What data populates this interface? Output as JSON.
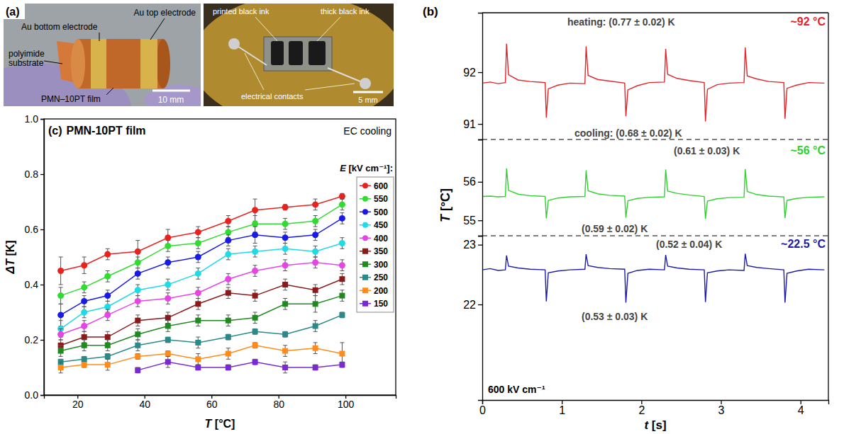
{
  "panel_a": {
    "panel_label": "(a)",
    "left_photo": {
      "labels": [
        "Au bottom electrode",
        "Au top electrode",
        "polyimide substrate",
        "PMN–10PT film"
      ],
      "scale_bar": "10 mm"
    },
    "right_photo": {
      "labels": [
        "printed black ink",
        "thick black ink",
        "electrical contacts"
      ],
      "scale_bar": "5 mm"
    }
  },
  "chart_data": [
    {
      "type": "line",
      "panel_label": "(b)",
      "xlabel": "t [s]",
      "ylabel": "T [°C]",
      "x": [
        0,
        0.1,
        0.2,
        0.29,
        0.305,
        0.33,
        0.45,
        0.6,
        0.79,
        0.805,
        0.83,
        0.95,
        1.1,
        1.29,
        1.305,
        1.33,
        1.45,
        1.6,
        1.79,
        1.805,
        1.83,
        1.95,
        2.1,
        2.29,
        2.305,
        2.33,
        2.45,
        2.6,
        2.79,
        2.805,
        2.83,
        2.95,
        3.1,
        3.29,
        3.305,
        3.33,
        3.45,
        3.6,
        3.79,
        3.805,
        3.83,
        3.95,
        4.1,
        4.3
      ],
      "xlim": [
        0,
        4.35
      ],
      "xticks": [
        0,
        1,
        2,
        3,
        4
      ],
      "field_label": "600 kV cm⁻¹",
      "panels": [
        {
          "ylim": [
            90.7,
            93.15
          ],
          "yticks": [
            91,
            92
          ],
          "temperature_label": "~92 °C",
          "annotations": [
            "heating: (0.77 ± 0.02) K",
            "cooling: (0.68 ± 0.02) K"
          ],
          "series": [
            {
              "color": "#e3242b",
              "values": [
                91.79,
                91.81,
                91.78,
                91.8,
                92.55,
                91.95,
                91.85,
                91.82,
                91.8,
                91.12,
                91.68,
                91.75,
                91.79,
                91.78,
                92.5,
                91.94,
                91.86,
                91.83,
                91.79,
                91.15,
                91.66,
                91.74,
                91.8,
                91.81,
                92.45,
                91.96,
                91.88,
                91.84,
                91.8,
                91.05,
                91.67,
                91.76,
                91.79,
                91.8,
                92.48,
                91.93,
                91.87,
                91.82,
                91.8,
                91.1,
                91.69,
                91.75,
                91.8,
                91.79
              ]
            }
          ]
        },
        {
          "ylim": [
            54.6,
            57.1
          ],
          "yticks": [
            55,
            56
          ],
          "temperature_label": "~56 °C",
          "annotations": [
            "(0.61 ± 0.03) K",
            "(0.59 ± 0.02) K"
          ],
          "series": [
            {
              "color": "#2fd12f",
              "values": [
                55.62,
                55.63,
                55.61,
                55.62,
                56.35,
                55.78,
                55.68,
                55.64,
                55.62,
                55.05,
                55.52,
                55.58,
                55.61,
                55.62,
                56.3,
                55.77,
                55.69,
                55.65,
                55.63,
                55.07,
                55.51,
                55.57,
                55.6,
                55.61,
                56.32,
                55.76,
                55.7,
                55.66,
                55.62,
                55.04,
                55.5,
                55.56,
                55.59,
                55.6,
                56.33,
                55.75,
                55.67,
                55.63,
                55.61,
                55.06,
                55.52,
                55.57,
                55.6,
                55.61
              ]
            }
          ]
        },
        {
          "ylim": [
            20.4,
            23.15
          ],
          "yticks": [
            22,
            23
          ],
          "temperature_label": "~22.5 °C",
          "annotations": [
            "(0.52 ± 0.04) K",
            "(0.53 ± 0.03) K"
          ],
          "series": [
            {
              "color": "#1c1ca8",
              "values": [
                22.58,
                22.6,
                22.57,
                22.58,
                22.82,
                22.64,
                22.61,
                22.59,
                22.58,
                22.05,
                22.53,
                22.56,
                22.58,
                22.59,
                22.84,
                22.65,
                22.62,
                22.6,
                22.59,
                22.03,
                22.52,
                22.57,
                22.59,
                22.58,
                22.83,
                22.64,
                22.61,
                22.59,
                22.58,
                22.04,
                22.53,
                22.56,
                22.58,
                22.57,
                22.85,
                22.65,
                22.62,
                22.6,
                22.58,
                22.03,
                22.52,
                22.56,
                22.59,
                22.58
              ]
            }
          ]
        }
      ]
    },
    {
      "type": "line",
      "panel_label": "(c)",
      "title": "PMN-10PT film",
      "annotations": [
        "EC cooling"
      ],
      "xlabel": "T [°C]",
      "ylabel": "ΔT [K]",
      "legend_title": "E [kV cm⁻¹]:",
      "legend": "upper right",
      "x": [
        15,
        22,
        29,
        38,
        47,
        56,
        65,
        73,
        82,
        91,
        99
      ],
      "xlim": [
        10,
        115
      ],
      "xticks": [
        20,
        40,
        60,
        80,
        100
      ],
      "ylim": [
        0,
        1
      ],
      "yticks": [
        {
          "value": 0,
          "label": "0.0"
        },
        0.2,
        0.4,
        0.6,
        0.8,
        {
          "value": 1,
          "label": "1.0"
        }
      ],
      "series": [
        {
          "name": "600",
          "color": "#e8231f",
          "marker": "circle",
          "values": [
            0.45,
            0.47,
            0.51,
            0.52,
            0.57,
            0.59,
            0.63,
            0.67,
            0.68,
            0.69,
            0.72
          ],
          "errors": [
            0.05,
            0.03,
            0.02,
            0.04,
            0.03,
            0.02,
            0.02,
            0.04,
            0.01,
            0.02,
            0.01
          ]
        },
        {
          "name": "550",
          "color": "#2fdc2f",
          "marker": "circle",
          "values": [
            0.36,
            0.39,
            0.43,
            0.48,
            0.54,
            0.55,
            0.59,
            0.62,
            0.62,
            0.63,
            0.69
          ],
          "errors": [
            0.03,
            0.02,
            0.02,
            0.02,
            0.02,
            0.02,
            0.02,
            0.03,
            0.02,
            0.02,
            0.02
          ]
        },
        {
          "name": "500",
          "color": "#1a1ae6",
          "marker": "circle",
          "values": [
            0.29,
            0.34,
            0.36,
            0.44,
            0.48,
            0.5,
            0.56,
            0.58,
            0.57,
            0.58,
            0.64
          ],
          "errors": [
            0.04,
            0.02,
            0.02,
            0.02,
            0.02,
            0.02,
            0.02,
            0.03,
            0.02,
            0.02,
            0.02
          ]
        },
        {
          "name": "450",
          "color": "#1fdbe6",
          "marker": "circle",
          "values": [
            0.24,
            0.3,
            0.32,
            0.38,
            0.4,
            0.44,
            0.51,
            0.52,
            0.53,
            0.52,
            0.55
          ],
          "errors": [
            0.03,
            0.02,
            0.02,
            0.02,
            0.02,
            0.02,
            0.02,
            0.02,
            0.02,
            0.02,
            0.02
          ]
        },
        {
          "name": "400",
          "color": "#e645e6",
          "marker": "circle",
          "values": [
            0.22,
            0.25,
            0.29,
            0.34,
            0.35,
            0.37,
            0.42,
            0.45,
            0.47,
            0.48,
            0.47
          ],
          "errors": [
            0.02,
            0.02,
            0.02,
            0.02,
            0.02,
            0.02,
            0.02,
            0.02,
            0.02,
            0.02,
            0.02
          ]
        },
        {
          "name": "350",
          "color": "#8b1a1a",
          "marker": "square",
          "values": [
            0.18,
            0.21,
            0.21,
            0.27,
            0.28,
            0.33,
            0.37,
            0.36,
            0.4,
            0.38,
            0.42
          ],
          "errors": [
            0.02,
            0.02,
            0.02,
            0.02,
            0.02,
            0.02,
            0.02,
            0.02,
            0.02,
            0.02,
            0.02
          ]
        },
        {
          "name": "300",
          "color": "#1f8a1f",
          "marker": "square",
          "values": [
            0.16,
            0.18,
            0.18,
            0.22,
            0.25,
            0.27,
            0.27,
            0.28,
            0.33,
            0.33,
            0.36
          ],
          "errors": [
            0.02,
            0.02,
            0.02,
            0.02,
            0.02,
            0.02,
            0.02,
            0.02,
            0.02,
            0.03,
            0.02
          ]
        },
        {
          "name": "250",
          "color": "#2a8a8a",
          "marker": "square",
          "values": [
            0.12,
            0.13,
            0.14,
            0.18,
            0.2,
            0.19,
            0.21,
            0.23,
            0.22,
            0.25,
            0.29
          ],
          "errors": [
            0.01,
            0.01,
            0.01,
            0.02,
            0.01,
            0.02,
            0.01,
            0.01,
            0.01,
            0.02,
            0.01
          ]
        },
        {
          "name": "200",
          "color": "#ff8c1a",
          "marker": "square",
          "values": [
            0.1,
            0.11,
            0.11,
            0.14,
            0.15,
            0.13,
            0.15,
            0.18,
            0.16,
            0.17,
            0.15
          ],
          "errors": [
            0.02,
            0.01,
            0.02,
            0.01,
            0.01,
            0.02,
            0.02,
            0.01,
            0.02,
            0.02,
            0.04
          ]
        },
        {
          "name": "150",
          "color": "#7a2ad0",
          "marker": "square",
          "values": [
            null,
            null,
            null,
            0.09,
            0.12,
            0.1,
            0.1,
            0.12,
            0.1,
            0.1,
            0.11
          ],
          "errors": [
            null,
            null,
            null,
            0.01,
            0.02,
            0.01,
            0.01,
            0.01,
            0.02,
            0.01,
            0.01
          ]
        }
      ]
    }
  ]
}
